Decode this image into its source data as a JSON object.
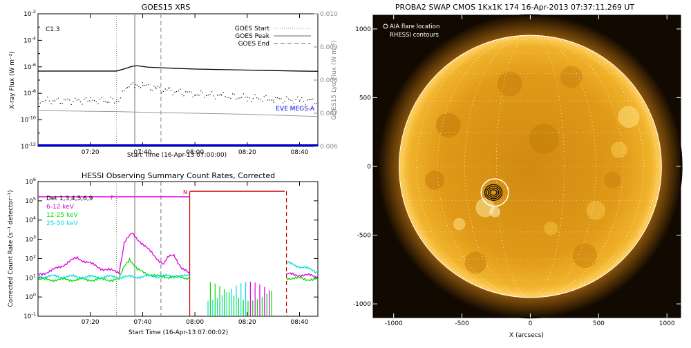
{
  "chart_data": [
    {
      "type": "line",
      "title": "GOES15 XRS",
      "xlabel": "Start Time (16-Apr-13 07:00:00)",
      "ylabel": "X-ray Flux (W m⁻²)",
      "ylabel_right": "GOES15 Lyα Flux (W m⁻²)",
      "annotation": "C1.3",
      "xlim": [
        "07:00",
        "08:47"
      ],
      "x_ticks": [
        "07:20",
        "07:40",
        "08:00",
        "08:20",
        "08:40"
      ],
      "ylim": [
        1e-12,
        0.01
      ],
      "yscale": "log",
      "y_ticks": [
        {
          "base": "10",
          "exp": "-2"
        },
        {
          "base": "10",
          "exp": "-4"
        },
        {
          "base": "10",
          "exp": "-6"
        },
        {
          "base": "10",
          "exp": "-8"
        },
        {
          "base": "10",
          "exp": "-10"
        },
        {
          "base": "10",
          "exp": "-12"
        }
      ],
      "ylim_right": [
        0.006,
        0.01
      ],
      "y_ticks_right": [
        "0.010",
        "0.009",
        "0.008",
        "0.007",
        "0.006"
      ],
      "markers": [
        {
          "name": "GOES Start",
          "x": "07:30",
          "style": "dotted"
        },
        {
          "name": "GOES Peak",
          "x": "07:37",
          "style": "solid"
        },
        {
          "name": "GOES End",
          "x": "07:47",
          "style": "dashed"
        }
      ],
      "legend_label_eve": "EVE MEGS-A",
      "series": [
        {
          "x": [
            "07:00",
            "07:30",
            "07:33",
            "07:36",
            "07:38",
            "07:42",
            "07:50",
            "08:00",
            "08:20",
            "08:40",
            "08:47"
          ],
          "y": [
            4.8e-07,
            4.8e-07,
            7e-07,
            1.1e-06,
            1.2e-06,
            9.5e-07,
            8e-07,
            6.8e-07,
            5.7e-07,
            4.8e-07,
            4.6e-07
          ],
          "color": "#000000"
        },
        {
          "x": [
            "07:00",
            "07:20",
            "07:30",
            "07:34",
            "07:37",
            "07:40",
            "07:45",
            "07:50",
            "08:00",
            "08:10",
            "08:20",
            "08:30",
            "08:40",
            "08:47"
          ],
          "y": [
            3e-09,
            3e-09,
            3e-09,
            3e-08,
            5e-08,
            4.2e-08,
            2.5e-08,
            1.6e-08,
            1e-08,
            7e-09,
            5e-09,
            4e-09,
            3e-09,
            3e-09
          ],
          "color": "#000000",
          "dotted": true
        },
        {
          "x": [
            "07:00",
            "07:30",
            "07:45",
            "08:00",
            "08:20",
            "08:40",
            "08:47"
          ],
          "y_right": [
            0.00708,
            0.00705,
            0.00702,
            0.007,
            0.00697,
            0.00692,
            0.0069
          ],
          "color": "#999999"
        },
        {
          "x": [
            "07:00",
            "08:47"
          ],
          "y_right": [
            0.00603,
            0.00603
          ],
          "color": "#0000dd"
        }
      ]
    },
    {
      "type": "line",
      "title": "HESSI Observing Summary Count Rates, Corrected",
      "xlabel": "Start Time (16-Apr-13 07:00:02)",
      "ylabel": "Corrected Count Rate (s⁻¹ detector⁻¹)",
      "xlim": [
        "07:00",
        "08:47"
      ],
      "x_ticks": [
        "07:20",
        "07:40",
        "08:00",
        "08:20",
        "08:40"
      ],
      "ylim": [
        0.1,
        1000000.0
      ],
      "yscale": "log",
      "y_ticks": [
        {
          "base": "10",
          "exp": "6"
        },
        {
          "base": "10",
          "exp": "5"
        },
        {
          "base": "10",
          "exp": "4"
        },
        {
          "base": "10",
          "exp": "3"
        },
        {
          "base": "10",
          "exp": "2"
        },
        {
          "base": "10",
          "exp": "1"
        },
        {
          "base": "10",
          "exp": "0"
        },
        {
          "base": "10",
          "exp": "-1"
        }
      ],
      "flag_f": "F",
      "flag_n": "N",
      "markers": [
        {
          "x": "07:30",
          "style": "dotted",
          "color": "#888888"
        },
        {
          "x": "07:37",
          "style": "solid",
          "color": "#888888"
        },
        {
          "x": "07:47",
          "style": "dashed",
          "color": "#888888"
        },
        {
          "x": "07:58",
          "style": "solid",
          "color": "#cc0000"
        },
        {
          "x": "08:35",
          "style": "dashed",
          "color": "#cc0000"
        }
      ],
      "legend": [
        {
          "name": "Det 1,3,4,5,6,9",
          "color": "#000000"
        },
        {
          "name": "6-12 keV",
          "color": "#dd00dd"
        },
        {
          "name": "12-25 keV",
          "color": "#00dd00"
        },
        {
          "name": "25-50 keV",
          "color": "#00dddd"
        }
      ],
      "series": [
        {
          "name": "6-12 keV",
          "color": "#dd00dd",
          "x": [
            "07:00",
            "07:05",
            "07:10",
            "07:15",
            "07:20",
            "07:25",
            "07:31",
            "07:33",
            "07:36",
            "07:39",
            "07:42",
            "07:45",
            "07:48",
            "07:50",
            "07:52",
            "07:55",
            "07:58"
          ],
          "y": [
            15,
            22,
            50,
            110,
            55,
            28,
            20,
            700,
            2000,
            800,
            300,
            120,
            50,
            120,
            160,
            30,
            15
          ]
        },
        {
          "name": "12-25 keV",
          "color": "#00dd00",
          "x": [
            "07:00",
            "07:20",
            "07:31",
            "07:33",
            "07:35",
            "07:38",
            "07:45",
            "07:58"
          ],
          "y": [
            8,
            8,
            8,
            40,
            100,
            25,
            12,
            10
          ]
        },
        {
          "name": "25-50 keV",
          "color": "#00dddd",
          "x": [
            "07:00",
            "07:20",
            "07:32",
            "07:35",
            "07:45",
            "07:58"
          ],
          "y": [
            12,
            11,
            11,
            11,
            12,
            12
          ]
        },
        {
          "name": "6-12 keV",
          "color": "#dd00dd",
          "x": [
            "08:35",
            "08:40",
            "08:47"
          ],
          "y": [
            15,
            14,
            12
          ]
        },
        {
          "name": "12-25 keV",
          "color": "#00dd00",
          "x": [
            "08:35",
            "08:40",
            "08:47"
          ],
          "y": [
            10,
            9,
            8
          ]
        },
        {
          "name": "25-50 keV",
          "color": "#00dddd",
          "x": [
            "08:35",
            "08:40",
            "08:47"
          ],
          "y": [
            60,
            40,
            20
          ]
        }
      ]
    },
    {
      "type": "scatter",
      "title": "PROBA2 SWAP CMOS 1Kx1K 174 16-Apr-2013 07:37:11.269 UT",
      "xlabel": "X (arcsecs)",
      "ylabel": "",
      "xlim": [
        -1150,
        1100
      ],
      "ylim": [
        -1100,
        1100
      ],
      "x_ticks": [
        "-1000",
        "-500",
        "0",
        "500",
        "1000"
      ],
      "y_ticks": [
        "1000",
        "500",
        "0",
        "-500",
        "-1000"
      ],
      "legend": [
        {
          "name": "AIA flare location",
          "color": "#ffffff"
        },
        {
          "name": "RHESSI contours",
          "color": "#000000"
        }
      ],
      "solar_radius_arcsec": 960,
      "aia_flare_location": [
        -260,
        -190
      ],
      "rhessi_contour_center": [
        -270,
        -190
      ]
    }
  ]
}
